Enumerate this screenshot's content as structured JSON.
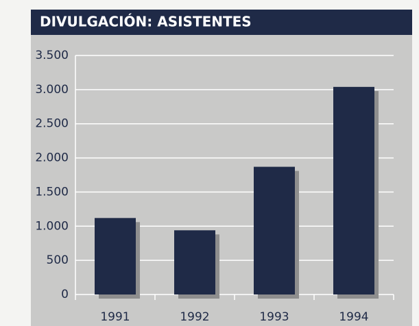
{
  "chart_data": {
    "type": "bar",
    "title": "DIVULGACIÓN: ASISTENTES",
    "categories": [
      "1991",
      "1992",
      "1993",
      "1994"
    ],
    "values": [
      1120,
      940,
      1870,
      3040
    ],
    "color": "#1f2a47",
    "ylim": [
      0,
      3500
    ],
    "yticks": [
      0,
      500,
      {
        "value": 1000,
        "label": "1.000"
      },
      {
        "value": 1500,
        "label": "1.500"
      },
      {
        "value": 2000,
        "label": "2.000"
      },
      {
        "value": 2500,
        "label": "2.500"
      },
      {
        "value": 3000,
        "label": "3.000"
      },
      {
        "value": 3500,
        "label": "3.500"
      }
    ],
    "grid": true
  }
}
